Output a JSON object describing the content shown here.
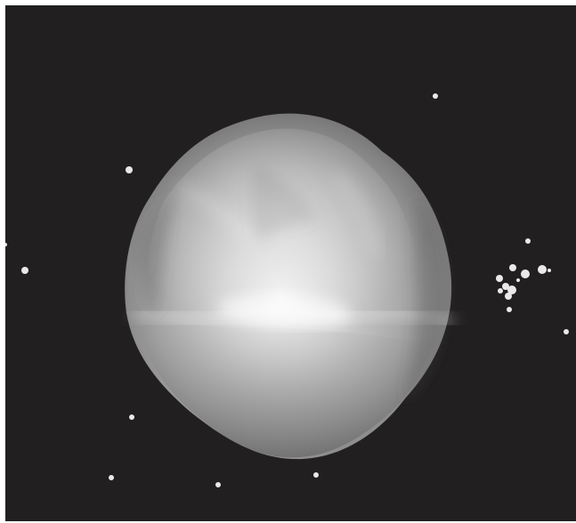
{
  "image": {
    "subject": "asteroid",
    "background_color": "#221f20",
    "asteroid_highlight_color": "#f3f3f3",
    "asteroid_midtone_color": "#a5a5a5",
    "asteroid_shadow_color": "#5b5b5b",
    "star_color": "#e9e9e9",
    "star_count": 21
  }
}
